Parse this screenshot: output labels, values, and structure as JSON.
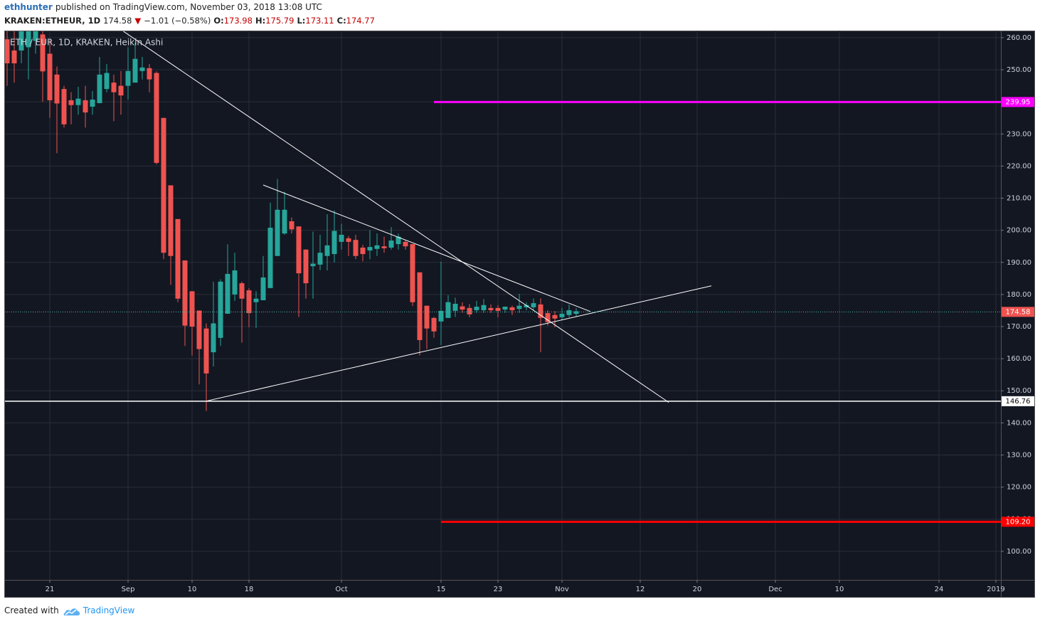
{
  "header": {
    "author": "ethhunter",
    "published": "published on TradingView.com, November 03, 2018 13:08 UTC",
    "symbol": "KRAKEN:ETHEUR, 1D",
    "arrow": "▼",
    "change": "−1.01 (−0.58%)",
    "o": "O:",
    "h": "H:",
    "l": "L:",
    "c": "C:"
  },
  "footer": {
    "created": "Created with",
    "brand": "TradingView"
  },
  "chart_data": {
    "type": "candlestick",
    "title": "ETH / EUR, 1D, KRAKEN, Heikin Ashi",
    "up_color": "#26a69a",
    "down_color": "#ef5350",
    "grid": true,
    "x": [
      "2018-08-15",
      "2018-08-16",
      "2018-08-17",
      "2018-08-18",
      "2018-08-19",
      "2018-08-20",
      "2018-08-21",
      "2018-08-22",
      "2018-08-23",
      "2018-08-24",
      "2018-08-25",
      "2018-08-26",
      "2018-08-27",
      "2018-08-28",
      "2018-08-29",
      "2018-08-30",
      "2018-08-31",
      "2018-09-01",
      "2018-09-02",
      "2018-09-03",
      "2018-09-04",
      "2018-09-05",
      "2018-09-06",
      "2018-09-07",
      "2018-09-08",
      "2018-09-09",
      "2018-09-10",
      "2018-09-11",
      "2018-09-12",
      "2018-09-13",
      "2018-09-14",
      "2018-09-15",
      "2018-09-16",
      "2018-09-17",
      "2018-09-18",
      "2018-09-19",
      "2018-09-20",
      "2018-09-21",
      "2018-09-22",
      "2018-09-23",
      "2018-09-24",
      "2018-09-25",
      "2018-09-26",
      "2018-09-27",
      "2018-09-28",
      "2018-09-29",
      "2018-09-30",
      "2018-10-01",
      "2018-10-02",
      "2018-10-03",
      "2018-10-04",
      "2018-10-05",
      "2018-10-06",
      "2018-10-07",
      "2018-10-08",
      "2018-10-09",
      "2018-10-10",
      "2018-10-11",
      "2018-10-12",
      "2018-10-13",
      "2018-10-14",
      "2018-10-15",
      "2018-10-16",
      "2018-10-17",
      "2018-10-18",
      "2018-10-19",
      "2018-10-20",
      "2018-10-21",
      "2018-10-22",
      "2018-10-23",
      "2018-10-24",
      "2018-10-25",
      "2018-10-26",
      "2018-10-27",
      "2018-10-28",
      "2018-10-29",
      "2018-10-30",
      "2018-10-31",
      "2018-11-01",
      "2018-11-02",
      "2018-11-03"
    ],
    "open": [
      259.5,
      256,
      256,
      257,
      259,
      261,
      255,
      248.5,
      244,
      240.5,
      239,
      240.5,
      238.5,
      239.6,
      244,
      246,
      245,
      245,
      246,
      249.6,
      250.5,
      249,
      235,
      214,
      203.5,
      190.6,
      181,
      175,
      169.4,
      162,
      166.5,
      174,
      180,
      183.5,
      181.3,
      177.6,
      178.2,
      182,
      192,
      199,
      202.8,
      201.2,
      194,
      188.8,
      189.3,
      192,
      192.6,
      196.4,
      197.5,
      197,
      194.6,
      193.7,
      194.2,
      195,
      194.6,
      195.7,
      196.4,
      195.7,
      186.9,
      176.5,
      172.7,
      171.6,
      172.7,
      174.9,
      176.3,
      175.8,
      175.1,
      175.1,
      175.8,
      175.8,
      175.3,
      176,
      175.5,
      176,
      176,
      176.9,
      174.2,
      173.6,
      172.9,
      173.6,
      173.98
    ],
    "high": [
      262,
      262,
      265,
      265,
      264,
      263,
      259.5,
      251,
      245,
      243,
      244.7,
      245,
      243.4,
      254,
      251.8,
      248.5,
      249.6,
      257,
      258.5,
      254,
      251.8,
      249.5,
      235,
      214,
      203.5,
      190.6,
      181,
      175,
      171,
      184,
      184.7,
      195.6,
      193,
      184,
      182,
      181,
      192,
      208.6,
      216,
      212,
      204,
      201.2,
      194,
      199.6,
      198.6,
      205,
      206.2,
      202,
      198.2,
      198.6,
      195.5,
      200,
      199,
      198,
      201,
      199,
      196.8,
      195.7,
      186.9,
      176.5,
      173,
      190.2,
      179.8,
      179,
      177.6,
      177,
      178,
      178.6,
      176.9,
      176.7,
      176.3,
      176.5,
      180.2,
      177.6,
      178.8,
      178.8,
      175.1,
      174.8,
      175.8,
      176.9,
      175.79
    ],
    "low": [
      245,
      246,
      252,
      247,
      255,
      240,
      235,
      224,
      232,
      233,
      236,
      232,
      236,
      239.6,
      243,
      234,
      236,
      240.7,
      246,
      247,
      243,
      220.5,
      191,
      183,
      177.6,
      164,
      161,
      152,
      143.7,
      157.6,
      164,
      174,
      178,
      165,
      169.8,
      169.6,
      178.2,
      182,
      192,
      198.6,
      199,
      173,
      178.7,
      178.7,
      187.6,
      187.5,
      190,
      194,
      192,
      191,
      190.3,
      191,
      192,
      193,
      194,
      194,
      194,
      176.4,
      161,
      163,
      166.5,
      164.3,
      172.7,
      173,
      174.3,
      172.9,
      174.3,
      174.3,
      174.3,
      172.9,
      174.3,
      173.6,
      174.3,
      175.1,
      175.1,
      162,
      170.3,
      169.8,
      172,
      172.9,
      173.11
    ],
    "close": [
      252,
      252,
      262,
      262,
      262,
      249.5,
      240.5,
      239.5,
      233,
      239,
      241,
      236.7,
      240.7,
      248.5,
      249,
      243,
      242,
      249.6,
      253.4,
      250.7,
      247,
      221,
      193,
      192,
      178.7,
      170.3,
      170,
      163,
      155.4,
      171,
      184,
      186.4,
      187.5,
      178.7,
      174.2,
      178.7,
      185.3,
      200.8,
      206.4,
      206.4,
      200.3,
      186.6,
      183.5,
      189.6,
      193,
      195.3,
      199.8,
      198.6,
      196.4,
      192,
      192.6,
      194.8,
      195.3,
      194.4,
      196.8,
      198,
      195,
      177.6,
      165.8,
      169.4,
      168.5,
      174.9,
      177.6,
      177.1,
      175.3,
      173.8,
      176.2,
      176.7,
      175.1,
      174.9,
      176.2,
      175.1,
      176.5,
      176.7,
      177.3,
      172.7,
      171.4,
      172.5,
      174,
      175.1,
      174.77
    ],
    "last_price": 174.58,
    "last_color": "#ef5350",
    "last_line_color": "#4db6ac",
    "levels": [
      {
        "value": 239.95,
        "color": "#ff00ff",
        "start": "2018-10-14"
      },
      {
        "value": 146.76,
        "color": "#ffffff"
      },
      {
        "value": 109.2,
        "label": "109.20",
        "color": "#ff0000",
        "start": "2018-10-15"
      }
    ],
    "trendlines": [
      {
        "color": "#ffffff",
        "points": [
          {
            "x": "2018-08-31",
            "y": 262.5
          },
          {
            "x": "2018-11-16",
            "y": 146.4
          }
        ]
      },
      {
        "color": "#ffffff",
        "points": [
          {
            "x": "2018-09-20",
            "y": 214.1
          },
          {
            "x": "2018-11-05",
            "y": 174.7
          }
        ]
      },
      {
        "color": "#ffffff",
        "points": [
          {
            "x": "2018-09-12",
            "y": 146.8
          },
          {
            "x": "2018-11-22",
            "y": 182.7
          }
        ]
      }
    ],
    "xlim": [
      "2018-08-15",
      "2019-01-01"
    ],
    "xticks": [
      {
        "value": "2018-08-21",
        "label": "21"
      },
      {
        "value": "2018-09-01",
        "label": "Sep"
      },
      {
        "value": "2018-09-10",
        "label": "10"
      },
      {
        "value": "2018-09-18",
        "label": "18"
      },
      {
        "value": "2018-10-01",
        "label": "Oct"
      },
      {
        "value": "2018-10-15",
        "label": "15"
      },
      {
        "value": "2018-10-23",
        "label": "23"
      },
      {
        "value": "2018-11-01",
        "label": "Nov"
      },
      {
        "value": "2018-11-12",
        "label": "12"
      },
      {
        "value": "2018-11-20",
        "label": "20"
      },
      {
        "value": "2018-12-01",
        "label": "Dec"
      },
      {
        "value": "2018-12-10",
        "label": "10"
      },
      {
        "value": "2018-12-24",
        "label": "24"
      },
      {
        "value": "2019-01-01",
        "label": "2019"
      }
    ],
    "ylim": [
      91.1,
      262.2
    ],
    "yticks": [
      {
        "value": 100,
        "label": "100.00"
      },
      {
        "value": 110,
        "label": "110.00"
      },
      {
        "value": 120,
        "label": "120.00"
      },
      {
        "value": 130,
        "label": "130.00"
      },
      {
        "value": 140,
        "label": "140.00"
      },
      {
        "value": 150,
        "label": "150.00"
      },
      {
        "value": 160,
        "label": "160.00"
      },
      {
        "value": 170,
        "label": "170.00"
      },
      {
        "value": 180,
        "label": "180.00"
      },
      {
        "value": 190,
        "label": "190.00"
      },
      {
        "value": 200,
        "label": "200.00"
      },
      {
        "value": 210,
        "label": "210.00"
      },
      {
        "value": 220,
        "label": "220.00"
      },
      {
        "value": 230,
        "label": "230.00"
      },
      {
        "value": 240,
        "label": "240.00"
      },
      {
        "value": 250,
        "label": "250.00"
      },
      {
        "value": 260,
        "label": "260.00"
      }
    ]
  }
}
